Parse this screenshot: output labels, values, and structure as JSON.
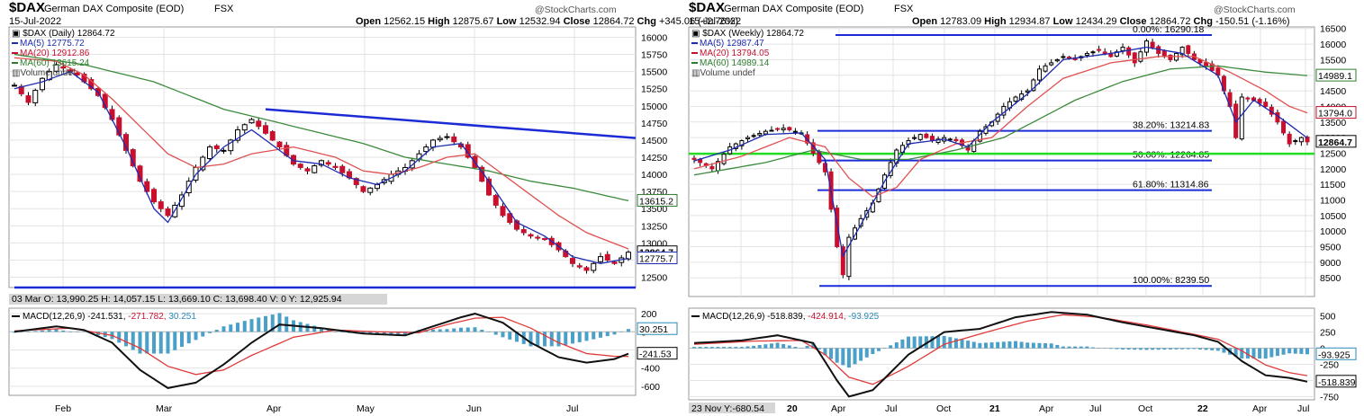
{
  "chart_data": [
    {
      "type": "candlestick",
      "symbol": "$DAX",
      "name": "German DAX Composite (EOD)",
      "exchange": "FSX",
      "date": "15-Jul-2022",
      "source_mark": "@StockCharts.com",
      "ohlc_label": {
        "open_k": "Open",
        "open": "12562.15",
        "high_k": "High",
        "high": "12875.67",
        "low_k": "Low",
        "low": "12532.94",
        "close_k": "Close",
        "close": "12864.72",
        "chg_k": "Chg",
        "chg": "+345.06 (+2.76%)"
      },
      "legend": [
        "$DAX (Daily) 12864.72",
        "MA(5) 12775.72",
        "MA(20) 12912.86",
        "MA(60) 13615.24",
        "Volume undef"
      ],
      "ylim": [
        12350,
        16150
      ],
      "y_ticks": [
        16000,
        15750,
        15500,
        15250,
        15000,
        14750,
        14500,
        14250,
        14000,
        13750,
        13500,
        13250,
        13000,
        12750,
        12500
      ],
      "x_ticks": [
        "Feb",
        "Mar",
        "Apr",
        "May",
        "Jun",
        "Jul"
      ],
      "tags": {
        "close": "12864.7",
        "ma5": "12775.7",
        "ma60": "13615.2"
      },
      "cursor_info": "03 Mar O: 13,990.25  H: 14,057.15  L: 13,669.10  C: 13,698.40  V: 0  Y: 12,925.94",
      "keys": [
        [
          0,
          15300
        ],
        [
          2,
          15050
        ],
        [
          4,
          15400
        ],
        [
          6,
          15600
        ],
        [
          9,
          15450
        ],
        [
          12,
          15150
        ],
        [
          14,
          14800
        ],
        [
          16,
          14350
        ],
        [
          18,
          13900
        ],
        [
          20,
          13600
        ],
        [
          22,
          13400
        ],
        [
          24,
          13700
        ],
        [
          26,
          14100
        ],
        [
          28,
          14400
        ],
        [
          30,
          14350
        ],
        [
          32,
          14650
        ],
        [
          34,
          14800
        ],
        [
          36,
          14600
        ],
        [
          38,
          14400
        ],
        [
          40,
          14150
        ],
        [
          42,
          14050
        ],
        [
          44,
          14200
        ],
        [
          46,
          14100
        ],
        [
          48,
          13950
        ],
        [
          50,
          13750
        ],
        [
          52,
          13850
        ],
        [
          54,
          14000
        ],
        [
          56,
          14100
        ],
        [
          58,
          14300
        ],
        [
          60,
          14500
        ],
        [
          62,
          14550
        ],
        [
          64,
          14400
        ],
        [
          66,
          14100
        ],
        [
          68,
          13700
        ],
        [
          70,
          13400
        ],
        [
          72,
          13200
        ],
        [
          74,
          13100
        ],
        [
          76,
          13050
        ],
        [
          78,
          12900
        ],
        [
          80,
          12700
        ],
        [
          82,
          12600
        ],
        [
          84,
          12800
        ],
        [
          86,
          12700
        ],
        [
          88,
          12864.72
        ]
      ],
      "ma5": [
        [
          0,
          15250
        ],
        [
          4,
          15350
        ],
        [
          8,
          15500
        ],
        [
          12,
          15200
        ],
        [
          16,
          14400
        ],
        [
          20,
          13500
        ],
        [
          22,
          13300
        ],
        [
          26,
          14000
        ],
        [
          30,
          14400
        ],
        [
          34,
          14650
        ],
        [
          40,
          14200
        ],
        [
          44,
          14150
        ],
        [
          48,
          13950
        ],
        [
          52,
          13850
        ],
        [
          56,
          14050
        ],
        [
          60,
          14400
        ],
        [
          64,
          14450
        ],
        [
          68,
          13900
        ],
        [
          72,
          13300
        ],
        [
          76,
          13100
        ],
        [
          80,
          12800
        ],
        [
          84,
          12700
        ],
        [
          88,
          12775.72
        ]
      ],
      "ma20": [
        [
          0,
          15700
        ],
        [
          6,
          15650
        ],
        [
          10,
          15450
        ],
        [
          14,
          15100
        ],
        [
          18,
          14700
        ],
        [
          22,
          14300
        ],
        [
          26,
          14100
        ],
        [
          30,
          14150
        ],
        [
          34,
          14300
        ],
        [
          40,
          14400
        ],
        [
          46,
          14250
        ],
        [
          50,
          14050
        ],
        [
          54,
          14000
        ],
        [
          58,
          14100
        ],
        [
          62,
          14250
        ],
        [
          66,
          14300
        ],
        [
          70,
          14000
        ],
        [
          74,
          13700
        ],
        [
          78,
          13400
        ],
        [
          82,
          13150
        ],
        [
          88,
          12912.86
        ]
      ],
      "ma60": [
        [
          0,
          15750
        ],
        [
          10,
          15600
        ],
        [
          20,
          15350
        ],
        [
          30,
          14950
        ],
        [
          40,
          14700
        ],
        [
          50,
          14450
        ],
        [
          56,
          14250
        ],
        [
          62,
          14150
        ],
        [
          68,
          14050
        ],
        [
          74,
          13900
        ],
        [
          80,
          13800
        ],
        [
          88,
          13615.24
        ]
      ],
      "trendlines": [
        {
          "from": [
            36,
            14950
          ],
          "to": [
            90,
            14530
          ],
          "color": "#1c2bd6"
        },
        {
          "from": [
            0,
            12350
          ],
          "to": [
            90,
            12350
          ],
          "color": "#1c2bd6"
        }
      ],
      "macd": {
        "label": "MACD(12,26,9) -241.531, -271.782, 30.251",
        "ylim": [
          -700,
          260
        ],
        "ticks": [
          200,
          0,
          -200,
          -400,
          -600
        ],
        "tags": {
          "hist": "30.251",
          "macd": "-241.53"
        },
        "macd_line": [
          [
            0,
            0
          ],
          [
            6,
            60
          ],
          [
            10,
            20
          ],
          [
            14,
            -120
          ],
          [
            18,
            -420
          ],
          [
            22,
            -620
          ],
          [
            26,
            -560
          ],
          [
            30,
            -360
          ],
          [
            34,
            -120
          ],
          [
            38,
            80
          ],
          [
            44,
            40
          ],
          [
            50,
            -20
          ],
          [
            56,
            -40
          ],
          [
            60,
            60
          ],
          [
            64,
            160
          ],
          [
            66,
            200
          ],
          [
            70,
            100
          ],
          [
            74,
            -120
          ],
          [
            78,
            -280
          ],
          [
            82,
            -340
          ],
          [
            86,
            -300
          ],
          [
            88,
            -241.531
          ]
        ],
        "signal": [
          [
            0,
            10
          ],
          [
            8,
            40
          ],
          [
            14,
            -40
          ],
          [
            18,
            -180
          ],
          [
            22,
            -380
          ],
          [
            26,
            -470
          ],
          [
            30,
            -420
          ],
          [
            34,
            -260
          ],
          [
            40,
            -60
          ],
          [
            46,
            20
          ],
          [
            52,
            0
          ],
          [
            58,
            -10
          ],
          [
            62,
            80
          ],
          [
            66,
            150
          ],
          [
            70,
            160
          ],
          [
            74,
            40
          ],
          [
            78,
            -120
          ],
          [
            82,
            -240
          ],
          [
            86,
            -270
          ],
          [
            88,
            -271.782
          ]
        ]
      }
    },
    {
      "type": "candlestick",
      "symbol": "$DAX",
      "name": "German DAX Composite (EOD)",
      "exchange": "FSX",
      "date": "15-Jul-2022",
      "source_mark": "@StockCharts.com",
      "ohlc_label": {
        "open_k": "Open",
        "open": "12783.09",
        "high_k": "High",
        "high": "12934.87",
        "low_k": "Low",
        "low": "12434.29",
        "close_k": "Close",
        "close": "12864.72",
        "chg_k": "Chg",
        "chg": "-150.51 (-1.16%)"
      },
      "legend": [
        "$DAX (Weekly) 12864.72",
        "MA(5) 12987.47",
        "MA(20) 13794.05",
        "MA(60) 14989.14",
        "Volume undef"
      ],
      "ylim": [
        7900,
        16550
      ],
      "y_ticks": [
        16500,
        16000,
        15500,
        15000,
        14500,
        14000,
        13500,
        13000,
        12500,
        12000,
        11500,
        11000,
        10500,
        10000,
        9500,
        9000,
        8500
      ],
      "x_ticks": [
        "Oct",
        "20",
        "Apr",
        "Jul",
        "Oct",
        "21",
        "Apr",
        "Jul",
        "Oct",
        "22",
        "Apr",
        "Jul"
      ],
      "tags": {
        "ma60": "14989.1",
        "ma20": "13794.0",
        "close": "12864.7"
      },
      "fib": [
        {
          "label": "0.00%: 16290.18",
          "value": 16290.18
        },
        {
          "label": "38.20%: 13214.83",
          "value": 13214.83
        },
        {
          "label": "50.00%: 12264.85",
          "value": 12264.85
        },
        {
          "label": "61.80%: 11314.86",
          "value": 11314.86
        },
        {
          "label": "100.00%: 8239.50",
          "value": 8239.5
        }
      ],
      "support": 12480,
      "keys": [
        [
          0,
          12300
        ],
        [
          3,
          12000
        ],
        [
          6,
          12700
        ],
        [
          9,
          13000
        ],
        [
          12,
          13200
        ],
        [
          15,
          13300
        ],
        [
          18,
          13150
        ],
        [
          20,
          12500
        ],
        [
          22,
          11900
        ],
        [
          24,
          9500
        ],
        [
          25,
          8600
        ],
        [
          26,
          9800
        ],
        [
          28,
          10400
        ],
        [
          30,
          10900
        ],
        [
          32,
          11800
        ],
        [
          34,
          12600
        ],
        [
          36,
          12900
        ],
        [
          38,
          13100
        ],
        [
          40,
          12900
        ],
        [
          42,
          13000
        ],
        [
          44,
          12900
        ],
        [
          46,
          12600
        ],
        [
          48,
          13200
        ],
        [
          50,
          13500
        ],
        [
          52,
          14000
        ],
        [
          54,
          14300
        ],
        [
          56,
          14500
        ],
        [
          58,
          15200
        ],
        [
          60,
          15400
        ],
        [
          62,
          15600
        ],
        [
          64,
          15500
        ],
        [
          66,
          15700
        ],
        [
          68,
          15800
        ],
        [
          70,
          15600
        ],
        [
          72,
          15900
        ],
        [
          74,
          15400
        ],
        [
          76,
          16100
        ],
        [
          78,
          15700
        ],
        [
          80,
          15500
        ],
        [
          82,
          15900
        ],
        [
          84,
          15500
        ],
        [
          86,
          15300
        ],
        [
          88,
          15000
        ],
        [
          90,
          14000
        ],
        [
          91,
          13000
        ],
        [
          92,
          14300
        ],
        [
          94,
          14200
        ],
        [
          96,
          14000
        ],
        [
          98,
          13500
        ],
        [
          100,
          12800
        ],
        [
          102,
          13000
        ],
        [
          103,
          12864.72
        ]
      ],
      "ma5": [
        [
          0,
          12250
        ],
        [
          6,
          12600
        ],
        [
          12,
          13100
        ],
        [
          18,
          13150
        ],
        [
          22,
          12300
        ],
        [
          25,
          9200
        ],
        [
          28,
          10200
        ],
        [
          32,
          11600
        ],
        [
          36,
          12800
        ],
        [
          42,
          12950
        ],
        [
          46,
          12700
        ],
        [
          50,
          13500
        ],
        [
          56,
          14400
        ],
        [
          62,
          15500
        ],
        [
          70,
          15700
        ],
        [
          76,
          15900
        ],
        [
          82,
          15700
        ],
        [
          88,
          15000
        ],
        [
          91,
          13500
        ],
        [
          94,
          14200
        ],
        [
          98,
          13700
        ],
        [
          103,
          12987.47
        ]
      ],
      "ma20": [
        [
          0,
          12000
        ],
        [
          8,
          12400
        ],
        [
          16,
          13000
        ],
        [
          22,
          12700
        ],
        [
          26,
          11700
        ],
        [
          30,
          11100
        ],
        [
          34,
          11400
        ],
        [
          38,
          12300
        ],
        [
          44,
          12800
        ],
        [
          50,
          13000
        ],
        [
          56,
          14000
        ],
        [
          62,
          14900
        ],
        [
          70,
          15400
        ],
        [
          78,
          15600
        ],
        [
          84,
          15600
        ],
        [
          90,
          15100
        ],
        [
          96,
          14500
        ],
        [
          100,
          14000
        ],
        [
          103,
          13794.05
        ]
      ],
      "ma60": [
        [
          0,
          11800
        ],
        [
          12,
          12200
        ],
        [
          20,
          12600
        ],
        [
          28,
          12300
        ],
        [
          36,
          12300
        ],
        [
          44,
          12600
        ],
        [
          52,
          13000
        ],
        [
          58,
          13600
        ],
        [
          64,
          14200
        ],
        [
          72,
          14800
        ],
        [
          80,
          15200
        ],
        [
          88,
          15300
        ],
        [
          96,
          15100
        ],
        [
          103,
          14989.14
        ]
      ],
      "macd": {
        "label": "MACD(12,26,9) -518.839, -424.914, -93.925",
        "ylim": [
          -800,
          620
        ],
        "ticks": [
          500,
          250,
          0,
          -250,
          -500,
          -750
        ],
        "tags": {
          "hist": "-93.925",
          "macd": "-518.839"
        },
        "macd_line": [
          [
            0,
            80
          ],
          [
            8,
            120
          ],
          [
            14,
            200
          ],
          [
            20,
            80
          ],
          [
            24,
            -500
          ],
          [
            26,
            -750
          ],
          [
            30,
            -650
          ],
          [
            36,
            -100
          ],
          [
            42,
            250
          ],
          [
            48,
            300
          ],
          [
            54,
            480
          ],
          [
            60,
            560
          ],
          [
            66,
            520
          ],
          [
            72,
            400
          ],
          [
            78,
            300
          ],
          [
            84,
            200
          ],
          [
            88,
            100
          ],
          [
            92,
            -200
          ],
          [
            96,
            -420
          ],
          [
            100,
            -460
          ],
          [
            103,
            -518.839
          ]
        ],
        "signal": [
          [
            0,
            60
          ],
          [
            10,
            110
          ],
          [
            18,
            120
          ],
          [
            22,
            -100
          ],
          [
            26,
            -450
          ],
          [
            30,
            -560
          ],
          [
            36,
            -280
          ],
          [
            42,
            60
          ],
          [
            48,
            220
          ],
          [
            56,
            420
          ],
          [
            62,
            520
          ],
          [
            68,
            480
          ],
          [
            76,
            360
          ],
          [
            82,
            250
          ],
          [
            88,
            140
          ],
          [
            92,
            -40
          ],
          [
            96,
            -260
          ],
          [
            100,
            -380
          ],
          [
            103,
            -424.914
          ]
        ]
      },
      "cursor_info": "23 Nov Y:-680.54"
    }
  ]
}
